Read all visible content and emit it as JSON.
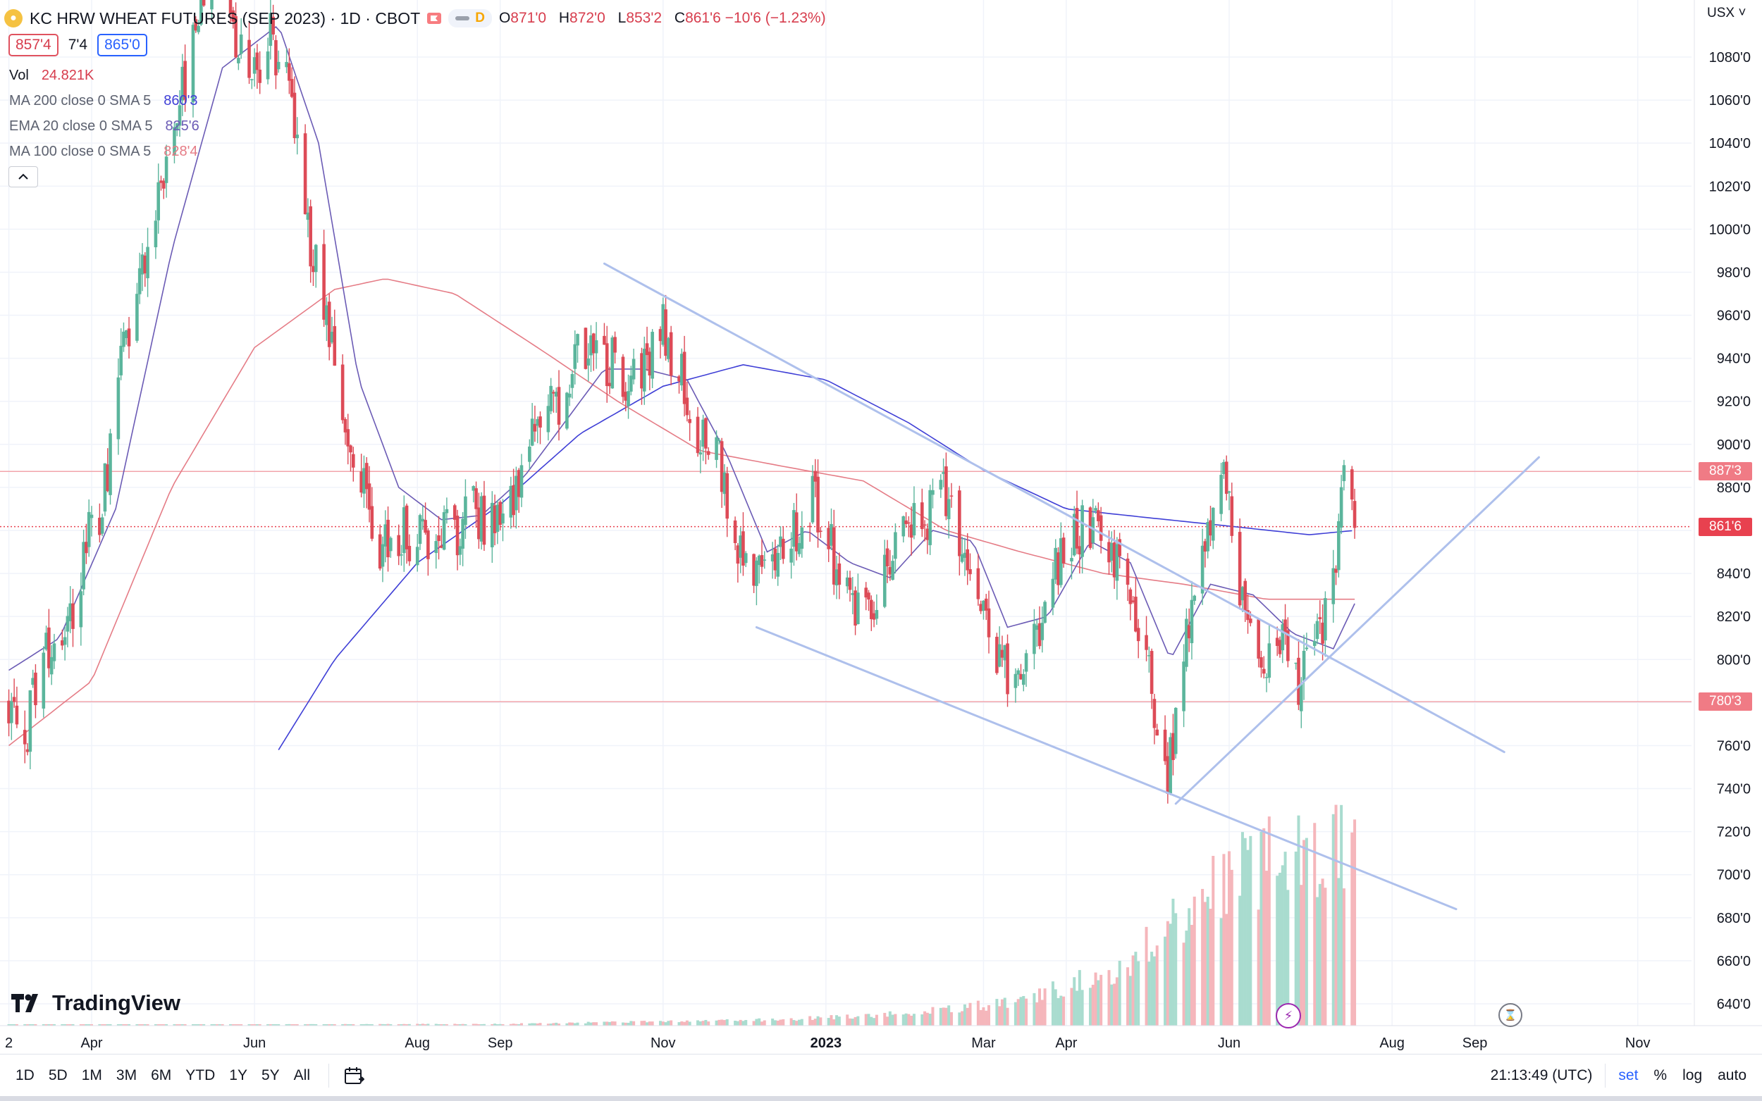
{
  "header": {
    "title": "KC HRW WHEAT FUTURES (SEP 2023) · 1D · CBOT",
    "pill_letter": "D",
    "ohlc": [
      {
        "key": "O",
        "value": "871'0"
      },
      {
        "key": "H",
        "value": "872'0"
      },
      {
        "key": "L",
        "value": "853'2"
      },
      {
        "key": "C",
        "value": "861'6 −10'6 (−1.23%)"
      }
    ],
    "bid": "857'4",
    "spread": "7'4",
    "ask": "865'0",
    "currency": "USX"
  },
  "legend": {
    "vol_label": "Vol",
    "vol_value": "24.821K",
    "ma200_label": "MA 200 close 0 SMA 5",
    "ma200_value": "860'3",
    "ema20_label": "EMA 20 close 0 SMA 5",
    "ema20_value": "825'6",
    "ma100_label": "MA 100 close 0 SMA 5",
    "ma100_value": "828'4"
  },
  "colors": {
    "up": "#5bb59c",
    "down": "#dd4b57",
    "ma200": "#3f3fd6",
    "ema20": "#6b5bb5",
    "ma100": "#e57c86",
    "trendline": "#aec0ec",
    "hline": "#f2a4ab"
  },
  "price_tags": {
    "upper": "887'3",
    "last": "861'6",
    "lower": "780'3"
  },
  "toolbar": {
    "ranges": [
      "1D",
      "5D",
      "1M",
      "3M",
      "6M",
      "YTD",
      "1Y",
      "5Y",
      "All"
    ],
    "clock": "21:13:49 (UTC)",
    "session": "set",
    "percent": "%",
    "log": "log",
    "auto": "auto"
  },
  "brand": "TradingView",
  "chart_data": {
    "type": "candlestick",
    "y_axis": {
      "min": 630,
      "max": 1100,
      "ticks": [
        {
          "v": 640,
          "label": "640'0"
        },
        {
          "v": 660,
          "label": "660'0"
        },
        {
          "v": 680,
          "label": "680'0"
        },
        {
          "v": 700,
          "label": "700'0"
        },
        {
          "v": 720,
          "label": "720'0"
        },
        {
          "v": 740,
          "label": "740'0"
        },
        {
          "v": 760,
          "label": "760'0"
        },
        {
          "v": 780,
          "label": "780'0"
        },
        {
          "v": 800,
          "label": "800'0"
        },
        {
          "v": 820,
          "label": "820'0"
        },
        {
          "v": 840,
          "label": "840'0"
        },
        {
          "v": 860,
          "label": "860'0"
        },
        {
          "v": 880,
          "label": "880'0"
        },
        {
          "v": 900,
          "label": "900'0"
        },
        {
          "v": 920,
          "label": "920'0"
        },
        {
          "v": 940,
          "label": "940'0"
        },
        {
          "v": 960,
          "label": "960'0"
        },
        {
          "v": 980,
          "label": "980'0"
        },
        {
          "v": 1000,
          "label": "1000'0"
        },
        {
          "v": 1020,
          "label": "1020'0"
        },
        {
          "v": 1040,
          "label": "1040'0"
        },
        {
          "v": 1060,
          "label": "1060'0"
        },
        {
          "v": 1080,
          "label": "1080'0"
        }
      ]
    },
    "x_axis": {
      "first_date": "2022-03-01",
      "last_date": "2023-11-30",
      "ticks": [
        {
          "date": "2022-03-01",
          "label": "2"
        },
        {
          "date": "2022-04-01",
          "label": "Apr"
        },
        {
          "date": "2022-06-01",
          "label": "Jun"
        },
        {
          "date": "2022-08-01",
          "label": "Aug"
        },
        {
          "date": "2022-09-01",
          "label": "Sep"
        },
        {
          "date": "2022-11-01",
          "label": "Nov"
        },
        {
          "date": "2023-01-01",
          "label": "2023",
          "bold": true
        },
        {
          "date": "2023-03-01",
          "label": "Mar"
        },
        {
          "date": "2023-04-01",
          "label": "Apr"
        },
        {
          "date": "2023-06-01",
          "label": "Jun"
        },
        {
          "date": "2023-08-01",
          "label": "Aug"
        },
        {
          "date": "2023-09-01",
          "label": "Sep"
        },
        {
          "date": "2023-11-01",
          "label": "Nov"
        }
      ]
    },
    "price_path": [
      [
        "2022-03-01",
        780
      ],
      [
        "2022-03-08",
        770
      ],
      [
        "2022-03-15",
        800
      ],
      [
        "2022-03-22",
        805
      ],
      [
        "2022-03-29",
        850
      ],
      [
        "2022-04-05",
        870
      ],
      [
        "2022-04-12",
        935
      ],
      [
        "2022-04-19",
        975
      ],
      [
        "2022-04-26",
        1020
      ],
      [
        "2022-05-03",
        1060
      ],
      [
        "2022-05-10",
        1090
      ],
      [
        "2022-05-17",
        1130
      ],
      [
        "2022-05-24",
        1095
      ],
      [
        "2022-05-31",
        1070
      ],
      [
        "2022-06-07",
        1090
      ],
      [
        "2022-06-14",
        1065
      ],
      [
        "2022-06-21",
        1000
      ],
      [
        "2022-06-28",
        960
      ],
      [
        "2022-07-05",
        900
      ],
      [
        "2022-07-12",
        880
      ],
      [
        "2022-07-19",
        850
      ],
      [
        "2022-07-26",
        860
      ],
      [
        "2022-08-02",
        855
      ],
      [
        "2022-08-09",
        865
      ],
      [
        "2022-08-16",
        860
      ],
      [
        "2022-08-23",
        870
      ],
      [
        "2022-08-30",
        860
      ],
      [
        "2022-09-06",
        880
      ],
      [
        "2022-09-13",
        905
      ],
      [
        "2022-09-20",
        915
      ],
      [
        "2022-09-27",
        930
      ],
      [
        "2022-10-04",
        950
      ],
      [
        "2022-10-11",
        940
      ],
      [
        "2022-10-18",
        930
      ],
      [
        "2022-10-25",
        935
      ],
      [
        "2022-11-01",
        955
      ],
      [
        "2022-11-08",
        930
      ],
      [
        "2022-11-15",
        900
      ],
      [
        "2022-11-22",
        890
      ],
      [
        "2022-11-29",
        855
      ],
      [
        "2022-12-06",
        835
      ],
      [
        "2022-12-13",
        840
      ],
      [
        "2022-12-20",
        860
      ],
      [
        "2022-12-27",
        875
      ],
      [
        "2023-01-03",
        850
      ],
      [
        "2023-01-10",
        830
      ],
      [
        "2023-01-17",
        825
      ],
      [
        "2023-01-24",
        840
      ],
      [
        "2023-01-31",
        860
      ],
      [
        "2023-02-07",
        865
      ],
      [
        "2023-02-14",
        880
      ],
      [
        "2023-02-21",
        855
      ],
      [
        "2023-02-28",
        820
      ],
      [
        "2023-03-07",
        800
      ],
      [
        "2023-03-14",
        785
      ],
      [
        "2023-03-21",
        815
      ],
      [
        "2023-03-28",
        840
      ],
      [
        "2023-04-04",
        860
      ],
      [
        "2023-04-11",
        865
      ],
      [
        "2023-04-18",
        850
      ],
      [
        "2023-04-25",
        830
      ],
      [
        "2023-05-02",
        790
      ],
      [
        "2023-05-09",
        745
      ],
      [
        "2023-05-16",
        810
      ],
      [
        "2023-05-23",
        860
      ],
      [
        "2023-05-30",
        880
      ],
      [
        "2023-06-06",
        830
      ],
      [
        "2023-06-13",
        800
      ],
      [
        "2023-06-20",
        810
      ],
      [
        "2023-06-27",
        790
      ],
      [
        "2023-07-04",
        805
      ],
      [
        "2023-07-11",
        845
      ],
      [
        "2023-07-14",
        880
      ],
      [
        "2023-07-18",
        862
      ]
    ],
    "ma_series": [
      {
        "name": "MA 200",
        "color_key": "ma200",
        "points": [
          [
            "2022-06-10",
            758
          ],
          [
            "2022-07-01",
            800
          ],
          [
            "2022-08-01",
            845
          ],
          [
            "2022-09-01",
            872
          ],
          [
            "2022-10-01",
            905
          ],
          [
            "2022-11-01",
            927
          ],
          [
            "2022-12-01",
            937
          ],
          [
            "2023-01-01",
            930
          ],
          [
            "2023-02-01",
            910
          ],
          [
            "2023-03-01",
            888
          ],
          [
            "2023-04-01",
            870
          ],
          [
            "2023-05-01",
            866
          ],
          [
            "2023-06-01",
            862
          ],
          [
            "2023-07-01",
            858
          ],
          [
            "2023-07-18",
            860
          ]
        ]
      },
      {
        "name": "MA 100",
        "color_key": "ma100",
        "points": [
          [
            "2022-03-01",
            760
          ],
          [
            "2022-04-01",
            790
          ],
          [
            "2022-05-01",
            880
          ],
          [
            "2022-06-01",
            945
          ],
          [
            "2022-07-01",
            972
          ],
          [
            "2022-07-20",
            977
          ],
          [
            "2022-08-15",
            970
          ],
          [
            "2022-09-15",
            945
          ],
          [
            "2022-10-15",
            920
          ],
          [
            "2022-11-15",
            897
          ],
          [
            "2022-12-15",
            890
          ],
          [
            "2023-01-15",
            883
          ],
          [
            "2023-02-15",
            860
          ],
          [
            "2023-03-15",
            850
          ],
          [
            "2023-04-15",
            840
          ],
          [
            "2023-05-15",
            835
          ],
          [
            "2023-06-15",
            828
          ],
          [
            "2023-07-18",
            828
          ]
        ]
      },
      {
        "name": "EMA 20",
        "color_key": "ema20",
        "points": [
          [
            "2022-03-01",
            795
          ],
          [
            "2022-03-20",
            810
          ],
          [
            "2022-04-10",
            870
          ],
          [
            "2022-05-01",
            990
          ],
          [
            "2022-05-20",
            1075
          ],
          [
            "2022-06-10",
            1095
          ],
          [
            "2022-06-25",
            1040
          ],
          [
            "2022-07-10",
            930
          ],
          [
            "2022-07-25",
            880
          ],
          [
            "2022-08-10",
            865
          ],
          [
            "2022-08-25",
            867
          ],
          [
            "2022-09-10",
            885
          ],
          [
            "2022-09-25",
            910
          ],
          [
            "2022-10-10",
            935
          ],
          [
            "2022-10-25",
            935
          ],
          [
            "2022-11-10",
            930
          ],
          [
            "2022-11-25",
            895
          ],
          [
            "2022-12-10",
            850
          ],
          [
            "2022-12-25",
            860
          ],
          [
            "2023-01-10",
            845
          ],
          [
            "2023-01-25",
            838
          ],
          [
            "2023-02-10",
            860
          ],
          [
            "2023-02-25",
            855
          ],
          [
            "2023-03-10",
            815
          ],
          [
            "2023-03-25",
            820
          ],
          [
            "2023-04-10",
            855
          ],
          [
            "2023-04-25",
            845
          ],
          [
            "2023-05-10",
            800
          ],
          [
            "2023-05-25",
            835
          ],
          [
            "2023-06-10",
            830
          ],
          [
            "2023-06-25",
            812
          ],
          [
            "2023-07-10",
            805
          ],
          [
            "2023-07-18",
            826
          ]
        ]
      }
    ],
    "trendlines": [
      {
        "from": [
          "2022-10-10",
          984
        ],
        "to": [
          "2023-09-12",
          757
        ]
      },
      {
        "from": [
          "2022-12-06",
          815
        ],
        "to": [
          "2023-08-25",
          684
        ]
      },
      {
        "from": [
          "2023-05-12",
          733
        ],
        "to": [
          "2023-09-25",
          894
        ]
      }
    ],
    "hlines": [
      887.4,
      861.75,
      780.4
    ],
    "volume": {
      "max_shown": 1,
      "start_date": "2022-03-01",
      "end_date": "2023-07-18",
      "level_points": [
        [
          "2022-03-01",
          0.004
        ],
        [
          "2022-09-01",
          0.008
        ],
        [
          "2022-12-15",
          0.03
        ],
        [
          "2023-02-01",
          0.06
        ],
        [
          "2023-03-15",
          0.12
        ],
        [
          "2023-04-20",
          0.28
        ],
        [
          "2023-05-10",
          0.5
        ],
        [
          "2023-06-01",
          0.75
        ],
        [
          "2023-06-20",
          0.85
        ],
        [
          "2023-07-18",
          0.95
        ]
      ]
    }
  }
}
